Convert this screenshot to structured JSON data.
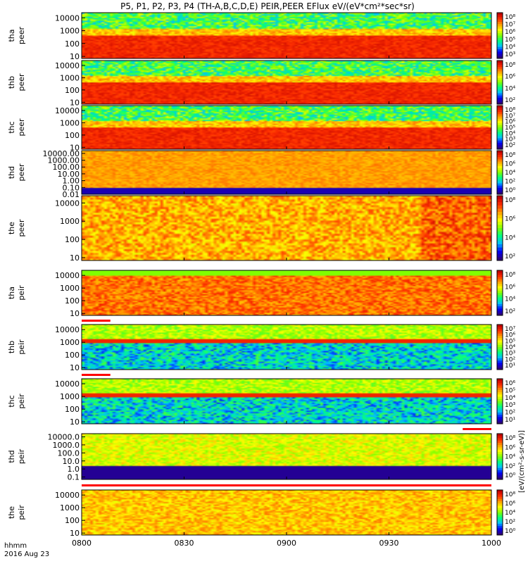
{
  "title": "P5, P1, P2, P3, P4 (TH-A,B,C,D,E) PEIR,PEER EFlux eV/(eV*cm²*sec*sr)",
  "footer": {
    "time_label": "hhmm",
    "date_label": "2016 Aug 23"
  },
  "colorbar_unit_label": "[eV/(cm²-s-sr-eV)]",
  "chart_data": {
    "type": "heatmap",
    "x_ticks": [
      "0800",
      "0830",
      "0900",
      "0930",
      "1000"
    ],
    "x_range": [
      "08:00",
      "10:00"
    ],
    "y_scale": "log",
    "panels": [
      {
        "id": "tha-peer",
        "ylabel_top": "tha",
        "ylabel_bottom": "peer",
        "yticks": [
          "10000",
          "1000",
          "100",
          "10"
        ],
        "yrange": [
          7,
          25000
        ],
        "cbar_ticks": [
          "10⁸",
          "10⁷",
          "10⁶",
          "10⁵",
          "10⁴",
          "10³"
        ],
        "cbar_range_exp": [
          3,
          8
        ]
      },
      {
        "id": "thb-peer",
        "ylabel_top": "thb",
        "ylabel_bottom": "peer",
        "yticks": [
          "10000",
          "1000",
          "100",
          "10"
        ],
        "yrange": [
          7,
          25000
        ],
        "cbar_ticks": [
          "10⁸",
          "10⁶",
          "10⁴",
          "10²"
        ],
        "cbar_range_exp": [
          2,
          8
        ]
      },
      {
        "id": "thc-peer",
        "ylabel_top": "thc",
        "ylabel_bottom": "peer",
        "yticks": [
          "10000",
          "1000",
          "100",
          "10"
        ],
        "yrange": [
          7,
          25000
        ],
        "cbar_ticks": [
          "10⁸",
          "10⁷",
          "10⁶",
          "10⁵",
          "10⁴",
          "10³",
          "10²"
        ],
        "cbar_range_exp": [
          2,
          8
        ]
      },
      {
        "id": "thd-peer",
        "ylabel_top": "thd",
        "ylabel_bottom": "peer",
        "yticks": [
          "10000.00",
          "1000.00",
          "100.00",
          "10.00",
          "1.00",
          "0.10",
          "0.01"
        ],
        "yrange": [
          0.01,
          25000
        ],
        "cbar_ticks": [
          "10⁸",
          "10⁶",
          "10⁴",
          "10²",
          "10⁰"
        ],
        "cbar_range_exp": [
          0,
          8
        ]
      },
      {
        "id": "the-peer",
        "ylabel_top": "the",
        "ylabel_bottom": "peer",
        "yticks": [
          "10000",
          "1000",
          "100",
          "10"
        ],
        "yrange": [
          7,
          25000
        ],
        "cbar_ticks": [
          "10⁸",
          "10⁶",
          "10⁴",
          "10²"
        ],
        "cbar_range_exp": [
          2,
          8
        ]
      },
      {
        "id": "tha-peir",
        "ylabel_top": "tha",
        "ylabel_bottom": "peir",
        "yticks": [
          "10000",
          "1000",
          "100",
          "10"
        ],
        "yrange": [
          7,
          25000
        ],
        "cbar_ticks": [
          "10⁸",
          "10⁶",
          "10⁴",
          "10²"
        ],
        "cbar_range_exp": [
          2,
          8
        ]
      },
      {
        "id": "thb-peir",
        "ylabel_top": "thb",
        "ylabel_bottom": "peir",
        "yticks": [
          "10000",
          "1000",
          "100",
          "10"
        ],
        "yrange": [
          7,
          25000
        ],
        "cbar_ticks": [
          "10⁷",
          "10⁶",
          "10⁵",
          "10⁴",
          "10³",
          "10²",
          "10¹"
        ],
        "cbar_range_exp": [
          1,
          7
        ]
      },
      {
        "id": "thc-peir",
        "ylabel_top": "thc",
        "ylabel_bottom": "peir",
        "yticks": [
          "10000",
          "1000",
          "100",
          "10"
        ],
        "yrange": [
          7,
          25000
        ],
        "cbar_ticks": [
          "10⁶",
          "10⁵",
          "10⁴",
          "10³",
          "10²",
          "10¹"
        ],
        "cbar_range_exp": [
          1,
          6
        ]
      },
      {
        "id": "thd-peir",
        "ylabel_top": "thd",
        "ylabel_bottom": "peir",
        "yticks": [
          "10000.0",
          "1000.0",
          "100.0",
          "10.0",
          "1.0",
          "0.1"
        ],
        "yrange": [
          0.05,
          25000
        ],
        "cbar_ticks": [
          "10⁸",
          "10⁶",
          "10⁴",
          "10²",
          "10⁰"
        ],
        "cbar_range_exp": [
          0,
          8
        ]
      },
      {
        "id": "the-peir",
        "ylabel_top": "the",
        "ylabel_bottom": "peir",
        "yticks": [
          "10000",
          "1000",
          "100",
          "10"
        ],
        "yrange": [
          7,
          25000
        ],
        "cbar_ticks": [
          "10⁸",
          "10⁶",
          "10⁴",
          "10²",
          "10⁰"
        ],
        "cbar_range_exp": [
          0,
          8
        ]
      }
    ],
    "colormap": [
      "#2b0080",
      "#0000ff",
      "#00c0ff",
      "#00ff80",
      "#80ff00",
      "#ffff00",
      "#ffa000",
      "#ff3000",
      "#c00000"
    ]
  }
}
